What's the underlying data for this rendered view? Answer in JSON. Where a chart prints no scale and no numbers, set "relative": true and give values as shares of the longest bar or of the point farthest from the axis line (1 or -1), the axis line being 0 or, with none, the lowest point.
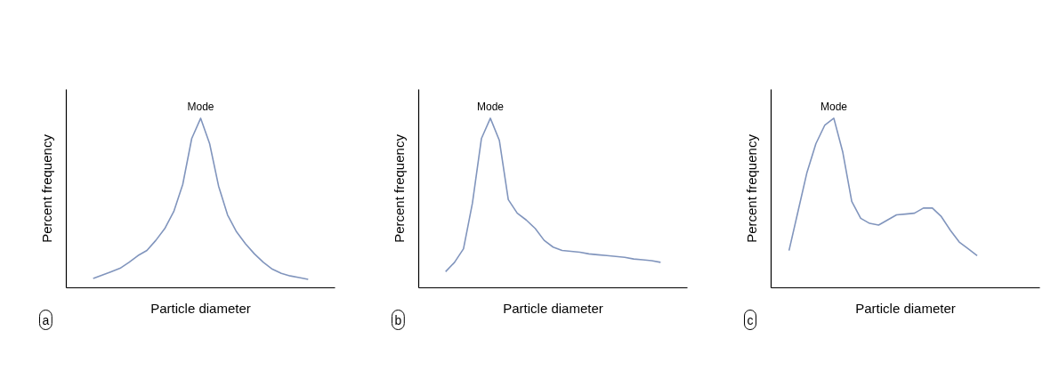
{
  "chart_data": [
    {
      "type": "line",
      "relative": true,
      "xlabel": "Particle diameter",
      "ylabel": "Percent frequency",
      "categories": [
        null,
        null,
        null,
        null,
        null,
        null,
        null,
        null,
        null,
        null,
        null,
        null,
        null,
        null,
        null,
        null,
        null,
        null,
        null,
        null,
        null,
        null,
        null,
        null,
        null,
        null,
        null,
        null,
        null,
        null,
        null
      ],
      "series": [
        {
          "color": "#8195bd",
          "values": [
            null,
            null,
            null,
            0.055,
            0.075,
            0.095,
            0.115,
            0.15,
            0.19,
            0.22,
            0.28,
            0.35,
            0.45,
            0.61,
            0.88,
            1.0,
            0.85,
            0.6,
            0.43,
            0.33,
            0.26,
            0.2,
            0.15,
            0.11,
            0.085,
            0.07,
            0.06,
            0.05,
            null,
            null,
            null
          ]
        }
      ],
      "annotations": [
        {
          "text": "Mode",
          "y": 1.0
        },
        "a"
      ]
    },
    {
      "type": "line",
      "relative": true,
      "xlabel": "Particle diameter",
      "ylabel": "Percent frequency",
      "categories": [
        null,
        null,
        null,
        null,
        null,
        null,
        null,
        null,
        null,
        null,
        null,
        null,
        null,
        null,
        null,
        null,
        null,
        null,
        null,
        null,
        null,
        null,
        null,
        null,
        null,
        null,
        null,
        null,
        null,
        null,
        null
      ],
      "series": [
        {
          "color": "#8195bd",
          "values": [
            null,
            null,
            null,
            0.095,
            0.15,
            0.23,
            0.5,
            0.88,
            1.0,
            0.87,
            0.52,
            0.44,
            0.4,
            0.35,
            0.28,
            0.24,
            0.22,
            0.215,
            0.21,
            0.2,
            0.195,
            0.19,
            0.185,
            0.18,
            0.17,
            0.165,
            0.16,
            0.15,
            null,
            null,
            null
          ]
        }
      ],
      "annotations": [
        {
          "text": "Mode",
          "y": 1.0
        },
        "b"
      ]
    },
    {
      "type": "line",
      "relative": true,
      "xlabel": "Particle diameter",
      "ylabel": "Percent frequency",
      "categories": [
        null,
        null,
        null,
        null,
        null,
        null,
        null,
        null,
        null,
        null,
        null,
        null,
        null,
        null,
        null,
        null,
        null,
        null,
        null,
        null,
        null,
        null,
        null,
        null,
        null,
        null,
        null,
        null,
        null,
        null,
        null
      ],
      "series": [
        {
          "color": "#8195bd",
          "values": [
            null,
            null,
            0.22,
            0.45,
            0.68,
            0.85,
            0.96,
            1.0,
            0.8,
            0.51,
            0.41,
            0.38,
            0.37,
            0.4,
            0.43,
            0.435,
            0.44,
            0.47,
            0.47,
            0.42,
            0.34,
            0.27,
            0.23,
            0.19,
            null,
            null,
            null,
            null,
            null,
            null,
            null
          ]
        }
      ],
      "annotations": [
        {
          "text": "Mode",
          "y": 1.0
        },
        "c"
      ]
    }
  ]
}
